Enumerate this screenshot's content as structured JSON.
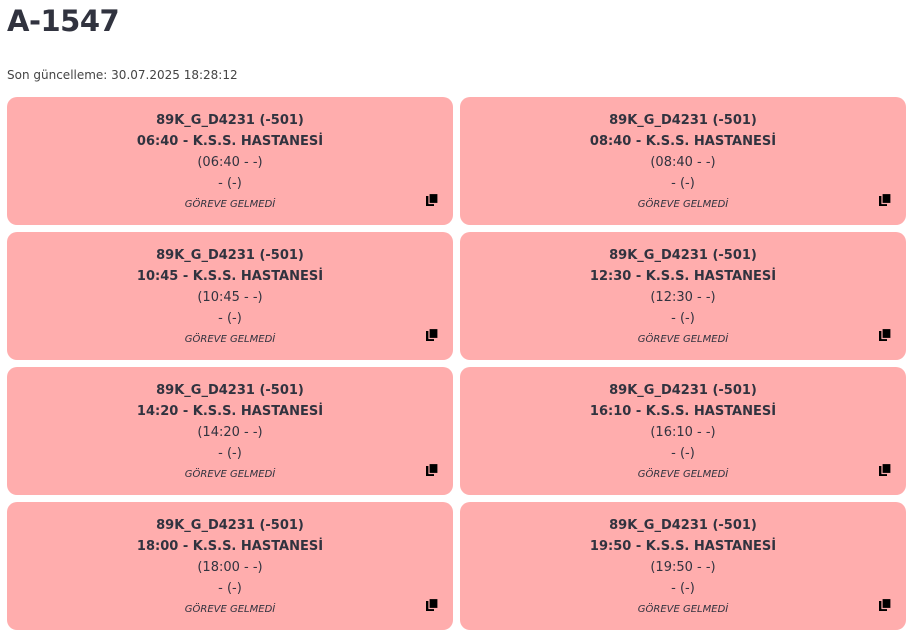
{
  "title": "A-1547",
  "last_update": "Son güncelleme: 30.07.2025 18:28:12",
  "cards": [
    {
      "line1": "89K_G_D4231 (-501)",
      "line2": "06:40 - K.S.S. HASTANESİ",
      "line3": "(06:40 - -)",
      "line4": "- (-)",
      "status": "GÖREVE GELMEDİ"
    },
    {
      "line1": "89K_G_D4231 (-501)",
      "line2": "08:40 - K.S.S. HASTANESİ",
      "line3": "(08:40 - -)",
      "line4": "- (-)",
      "status": "GÖREVE GELMEDİ"
    },
    {
      "line1": "89K_G_D4231 (-501)",
      "line2": "10:45 - K.S.S. HASTANESİ",
      "line3": "(10:45 - -)",
      "line4": "- (-)",
      "status": "GÖREVE GELMEDİ"
    },
    {
      "line1": "89K_G_D4231 (-501)",
      "line2": "12:30 - K.S.S. HASTANESİ",
      "line3": "(12:30 - -)",
      "line4": "- (-)",
      "status": "GÖREVE GELMEDİ"
    },
    {
      "line1": "89K_G_D4231 (-501)",
      "line2": "14:20 - K.S.S. HASTANESİ",
      "line3": "(14:20 - -)",
      "line4": "- (-)",
      "status": "GÖREVE GELMEDİ"
    },
    {
      "line1": "89K_G_D4231 (-501)",
      "line2": "16:10 - K.S.S. HASTANESİ",
      "line3": "(16:10 - -)",
      "line4": "- (-)",
      "status": "GÖREVE GELMEDİ"
    },
    {
      "line1": "89K_G_D4231 (-501)",
      "line2": "18:00 - K.S.S. HASTANESİ",
      "line3": "(18:00 - -)",
      "line4": "- (-)",
      "status": "GÖREVE GELMEDİ"
    },
    {
      "line1": "89K_G_D4231 (-501)",
      "line2": "19:50 - K.S.S. HASTANESİ",
      "line3": "(19:50 - -)",
      "line4": "- (-)",
      "status": "GÖREVE GELMEDİ"
    }
  ],
  "colors": {
    "card_bg": "#ffadad"
  },
  "icons": {
    "copy": "copy-icon"
  }
}
